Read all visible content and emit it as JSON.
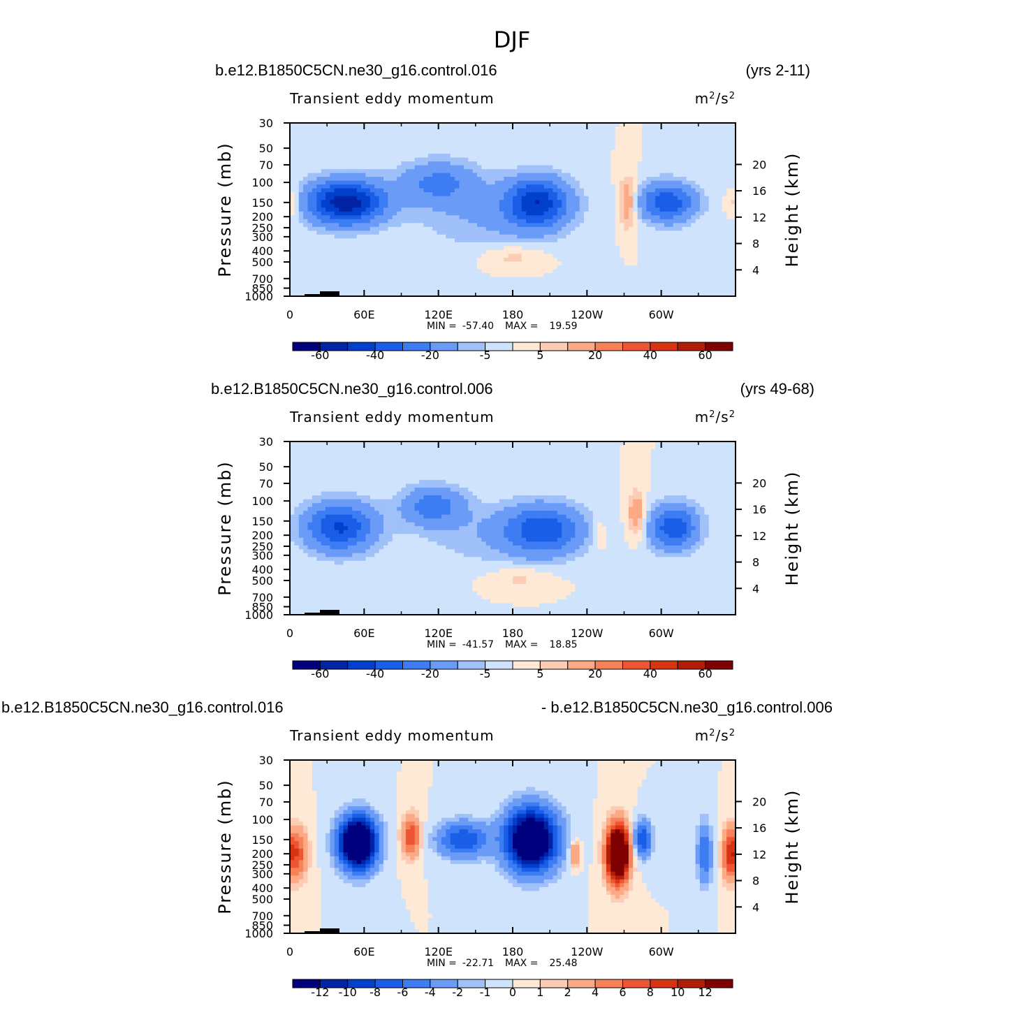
{
  "figure_title": "DJF",
  "chart_data": [
    {
      "type": "heatmap",
      "case_left": "b.e12.B1850C5CN.ne30_g16.control.016",
      "case_right": "(yrs 2-11)",
      "variable": "Transient eddy momentum",
      "units_base": "m",
      "units_sup1": "2",
      "units_mid": "/s",
      "units_sup2": "2",
      "ylabel": "Pressure (mb)",
      "ylabel_right": "Height (km)",
      "xticks": [
        "0",
        "60E",
        "120E",
        "180",
        "120W",
        "60W"
      ],
      "yticks": [
        "30",
        "50",
        "70",
        "100",
        "150",
        "200",
        "250",
        "300",
        "400",
        "500",
        "700",
        "850",
        "1000"
      ],
      "height_ticks": [
        "20",
        "16",
        "12",
        "8",
        "4"
      ],
      "stats": {
        "min_label": "MIN =",
        "min": "-57.40",
        "max_label": "MAX =",
        "max": "19.59"
      },
      "levels": [
        -70,
        -60,
        -50,
        -40,
        -30,
        -20,
        -10,
        -5,
        0,
        5,
        10,
        20,
        30,
        40,
        50,
        60,
        70
      ],
      "colorbar_labels": [
        {
          "level": -60,
          "text": "-60"
        },
        {
          "level": -40,
          "text": "-40"
        },
        {
          "level": -20,
          "text": "-20"
        },
        {
          "level": -5,
          "text": "-5"
        },
        {
          "level": 5,
          "text": "5"
        },
        {
          "level": 20,
          "text": "20"
        },
        {
          "level": 40,
          "text": "40"
        },
        {
          "level": 60,
          "text": "60"
        }
      ],
      "features": [
        {
          "lon": 45,
          "p": 150,
          "amp": -57.4,
          "slon": 22,
          "sy": 0.09
        },
        {
          "lon": 120,
          "p": 100,
          "amp": -22,
          "slon": 22,
          "sy": 0.09
        },
        {
          "lon": 200,
          "p": 150,
          "amp": -45,
          "slon": 18,
          "sy": 0.1
        },
        {
          "lon": 305,
          "p": 150,
          "amp": -38,
          "slon": 16,
          "sy": 0.08
        },
        {
          "lon": 160,
          "p": 200,
          "amp": -10,
          "slon": 40,
          "sy": 0.14
        },
        {
          "lon": 273,
          "p": 150,
          "amp": 19.59,
          "slon": 5,
          "sy": 0.1
        },
        {
          "lon": 180,
          "p": 450,
          "amp": 8,
          "slon": 18,
          "sy": 0.05
        },
        {
          "lon": 0,
          "p": 150,
          "amp": 12,
          "slon": 6,
          "sy": 0.06
        }
      ]
    },
    {
      "type": "heatmap",
      "case_left": "b.e12.B1850C5CN.ne30_g16.control.006",
      "case_right": "(yrs 49-68)",
      "variable": "Transient eddy momentum",
      "units_base": "m",
      "units_sup1": "2",
      "units_mid": "/s",
      "units_sup2": "2",
      "ylabel": "Pressure (mb)",
      "ylabel_right": "Height (km)",
      "xticks": [
        "0",
        "60E",
        "120E",
        "180",
        "120W",
        "60W"
      ],
      "yticks": [
        "30",
        "50",
        "70",
        "100",
        "150",
        "200",
        "250",
        "300",
        "400",
        "500",
        "700",
        "850",
        "1000"
      ],
      "height_ticks": [
        "20",
        "16",
        "12",
        "8",
        "4"
      ],
      "stats": {
        "min_label": "MIN =",
        "min": "-41.57",
        "max_label": "MAX =",
        "max": "18.85"
      },
      "levels": [
        -70,
        -60,
        -50,
        -40,
        -30,
        -20,
        -10,
        -5,
        0,
        5,
        10,
        20,
        30,
        40,
        50,
        60,
        70
      ],
      "colorbar_labels": [
        {
          "level": -60,
          "text": "-60"
        },
        {
          "level": -40,
          "text": "-40"
        },
        {
          "level": -20,
          "text": "-20"
        },
        {
          "level": -5,
          "text": "-5"
        },
        {
          "level": 5,
          "text": "5"
        },
        {
          "level": 20,
          "text": "20"
        },
        {
          "level": 40,
          "text": "40"
        },
        {
          "level": 60,
          "text": "60"
        }
      ],
      "features": [
        {
          "lon": 40,
          "p": 170,
          "amp": -41.57,
          "slon": 20,
          "sy": 0.1
        },
        {
          "lon": 115,
          "p": 110,
          "amp": -25,
          "slon": 18,
          "sy": 0.08
        },
        {
          "lon": 205,
          "p": 180,
          "amp": -35,
          "slon": 22,
          "sy": 0.1
        },
        {
          "lon": 310,
          "p": 170,
          "amp": -38,
          "slon": 14,
          "sy": 0.09
        },
        {
          "lon": 160,
          "p": 200,
          "amp": -8,
          "slon": 40,
          "sy": 0.13
        },
        {
          "lon": 280,
          "p": 130,
          "amp": 18.85,
          "slon": 5,
          "sy": 0.09
        },
        {
          "lon": 250,
          "p": 200,
          "amp": 8,
          "slon": 4,
          "sy": 0.06
        },
        {
          "lon": 185,
          "p": 480,
          "amp": 7,
          "slon": 18,
          "sy": 0.05
        }
      ]
    },
    {
      "type": "heatmap",
      "case_left": "b.e12.B1850C5CN.ne30_g16.control.016",
      "case_right": "- b.e12.B1850C5CN.ne30_g16.control.006",
      "variable": "Transient eddy momentum",
      "units_base": "m",
      "units_sup1": "2",
      "units_mid": "/s",
      "units_sup2": "2",
      "ylabel": "Pressure (mb)",
      "ylabel_right": "Height (km)",
      "xticks": [
        "0",
        "60E",
        "120E",
        "180",
        "120W",
        "60W"
      ],
      "yticks": [
        "30",
        "50",
        "70",
        "100",
        "150",
        "200",
        "250",
        "300",
        "400",
        "500",
        "700",
        "850",
        "1000"
      ],
      "height_ticks": [
        "20",
        "16",
        "12",
        "8",
        "4"
      ],
      "stats": {
        "min_label": "MIN =",
        "min": "-22.71",
        "max_label": "MAX =",
        "max": "25.48"
      },
      "levels": [
        -14,
        -12,
        -10,
        -8,
        -6,
        -4,
        -2,
        -1,
        0,
        1,
        2,
        4,
        6,
        8,
        10,
        12,
        14
      ],
      "colorbar_labels": [
        {
          "level": -12,
          "text": "-12"
        },
        {
          "level": -10,
          "text": "-10"
        },
        {
          "level": -8,
          "text": "-8"
        },
        {
          "level": -6,
          "text": "-6"
        },
        {
          "level": -4,
          "text": "-4"
        },
        {
          "level": -2,
          "text": "-2"
        },
        {
          "level": -1,
          "text": "-1"
        },
        {
          "level": 0,
          "text": "0"
        },
        {
          "level": 1,
          "text": "1"
        },
        {
          "level": 2,
          "text": "2"
        },
        {
          "level": 4,
          "text": "4"
        },
        {
          "level": 6,
          "text": "6"
        },
        {
          "level": 8,
          "text": "8"
        },
        {
          "level": 10,
          "text": "10"
        },
        {
          "level": 12,
          "text": "12"
        }
      ],
      "features": [
        {
          "lon": 55,
          "p": 160,
          "amp": -22.71,
          "slon": 10,
          "sy": 0.1
        },
        {
          "lon": 195,
          "p": 150,
          "amp": -20,
          "slon": 14,
          "sy": 0.12
        },
        {
          "lon": 140,
          "p": 150,
          "amp": -8,
          "slon": 14,
          "sy": 0.07
        },
        {
          "lon": 285,
          "p": 150,
          "amp": -8,
          "slon": 5,
          "sy": 0.07
        },
        {
          "lon": 335,
          "p": 200,
          "amp": -6,
          "slon": 4,
          "sy": 0.12
        },
        {
          "lon": 265,
          "p": 200,
          "amp": 25.48,
          "slon": 6,
          "sy": 0.11
        },
        {
          "lon": 98,
          "p": 140,
          "amp": 8,
          "slon": 5,
          "sy": 0.08
        },
        {
          "lon": 5,
          "p": 200,
          "amp": 8,
          "slon": 6,
          "sy": 0.1
        },
        {
          "lon": 355,
          "p": 200,
          "amp": 8,
          "slon": 4,
          "sy": 0.1
        },
        {
          "lon": 230,
          "p": 200,
          "amp": 5,
          "slon": 3,
          "sy": 0.05
        }
      ]
    }
  ]
}
